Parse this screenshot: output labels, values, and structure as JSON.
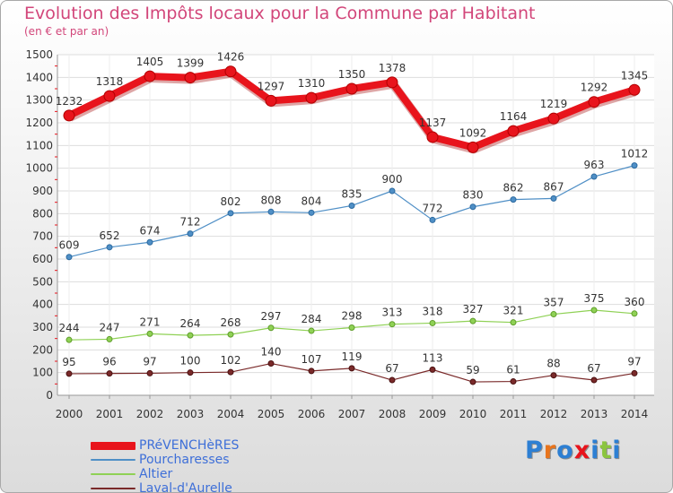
{
  "chart_data": {
    "type": "line",
    "title": "Evolution des Impôts locaux pour la Commune par Habitant",
    "subtitle": "(en € et par an)",
    "x": [
      "2000",
      "2001",
      "2002",
      "2003",
      "2004",
      "2005",
      "2006",
      "2007",
      "2008",
      "2009",
      "2010",
      "2011",
      "2012",
      "2013",
      "2014"
    ],
    "ylim": [
      0,
      1500
    ],
    "yticks": [
      0,
      100,
      200,
      300,
      400,
      500,
      600,
      700,
      800,
      900,
      1000,
      1100,
      1200,
      1300,
      1400,
      1500
    ],
    "grid": true,
    "legend_position": "bottom-left",
    "series": [
      {
        "name": "PRéVENCHèRES",
        "color": "#e8141c",
        "values": [
          1232,
          1318,
          1405,
          1399,
          1426,
          1297,
          1310,
          1350,
          1378,
          1137,
          1092,
          1164,
          1219,
          1292,
          1345
        ]
      },
      {
        "name": "Pourcharesses",
        "color": "#4f8fc6",
        "values": [
          609,
          652,
          674,
          712,
          802,
          808,
          804,
          835,
          900,
          772,
          830,
          862,
          867,
          963,
          1012
        ]
      },
      {
        "name": "Altier",
        "color": "#8fd155",
        "values": [
          244,
          247,
          271,
          264,
          268,
          297,
          284,
          298,
          313,
          318,
          327,
          321,
          357,
          375,
          360
        ]
      },
      {
        "name": "Laval-d'Aurelle",
        "color": "#7a2a2a",
        "values": [
          95,
          96,
          97,
          100,
          102,
          140,
          107,
          119,
          67,
          113,
          59,
          61,
          88,
          67,
          97
        ]
      }
    ]
  },
  "legend_colors": {
    "PRéVENCHèRES": "#3e6fd8",
    "Pourcharesses": "#3e6fd8",
    "Altier": "#3e6fd8",
    "Laval-d'Aurelle": "#3e6fd8"
  },
  "logo": {
    "letters": [
      "P",
      "r",
      "o",
      "x",
      "i",
      "t",
      "i"
    ],
    "colors": [
      "#2d7fd3",
      "#e8741c",
      "#2d7fd3",
      "#e8141c",
      "#2d7fd3",
      "#8bc53f",
      "#2d7fd3"
    ]
  }
}
